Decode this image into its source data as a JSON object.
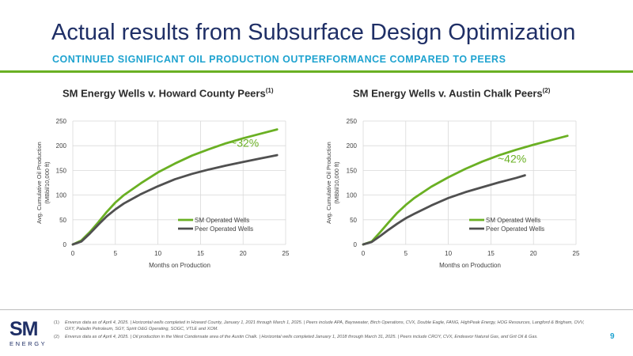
{
  "header": {
    "title": "Actual results from Subsurface Design Optimization",
    "subtitle": "CONTINUED SIGNIFICANT OIL PRODUCTION OUTPERFORMANCE COMPARED TO PEERS"
  },
  "colors": {
    "accent_green": "#6ab023",
    "peer_gray": "#505050",
    "title_navy": "#1f2f66",
    "subtitle_blue": "#1fa3d0"
  },
  "chart_data": [
    {
      "type": "line",
      "title": "SM Energy Wells v. Howard County Peers",
      "title_sup": "(1)",
      "xlabel": "Months on Production",
      "ylabel_line1": "Avg. Cumulative Oil Production",
      "ylabel_line2": "(MBbl/10,000 ft)",
      "xlim": [
        0,
        25
      ],
      "ylim": [
        0,
        250
      ],
      "xticks": [
        0,
        5,
        10,
        15,
        20,
        25
      ],
      "yticks": [
        0,
        50,
        100,
        150,
        200,
        250
      ],
      "grid": true,
      "legend": "bottom-right",
      "annotation": "~32%",
      "series": [
        {
          "name": "SM Operated Wells",
          "color": "#6ab023",
          "x": [
            0,
            1,
            2,
            3,
            4,
            5,
            6,
            8,
            10,
            12,
            14,
            16,
            18,
            20,
            22,
            24
          ],
          "values": [
            0,
            8,
            25,
            45,
            66,
            85,
            100,
            124,
            146,
            164,
            180,
            193,
            205,
            215,
            224,
            233
          ]
        },
        {
          "name": "Peer Operated Wells",
          "color": "#505050",
          "x": [
            0,
            1,
            2,
            3,
            4,
            5,
            6,
            8,
            10,
            12,
            14,
            16,
            18,
            20,
            22,
            24
          ],
          "values": [
            0,
            6,
            22,
            40,
            57,
            71,
            83,
            102,
            118,
            132,
            143,
            152,
            160,
            167,
            174,
            181
          ]
        }
      ]
    },
    {
      "type": "line",
      "title": "SM Energy Wells v. Austin Chalk Peers",
      "title_sup": "(2)",
      "xlabel": "Months on Production",
      "ylabel_line1": "Avg. Cumulative Oil Production",
      "ylabel_line2": "(MBbl/10,000 ft)",
      "xlim": [
        0,
        25
      ],
      "ylim": [
        0,
        250
      ],
      "xticks": [
        0,
        5,
        10,
        15,
        20,
        25
      ],
      "yticks": [
        0,
        50,
        100,
        150,
        200,
        250
      ],
      "grid": true,
      "legend": "bottom-right",
      "annotation": "~42%",
      "series": [
        {
          "name": "SM Operated Wells",
          "color": "#6ab023",
          "x": [
            0,
            1,
            2,
            3,
            4,
            5,
            6,
            8,
            10,
            12,
            14,
            16,
            18,
            20,
            22,
            24
          ],
          "values": [
            0,
            6,
            25,
            45,
            64,
            80,
            94,
            117,
            136,
            153,
            168,
            181,
            192,
            202,
            211,
            220
          ]
        },
        {
          "name": "Peer Operated Wells",
          "color": "#505050",
          "x": [
            0,
            1,
            2,
            3,
            4,
            5,
            6,
            8,
            10,
            12,
            14,
            16,
            18,
            19
          ],
          "values": [
            0,
            5,
            17,
            30,
            42,
            53,
            62,
            79,
            94,
            106,
            116,
            126,
            135,
            140
          ]
        }
      ]
    }
  ],
  "footer": {
    "logo_sm": "SM",
    "logo_energy": "ENERGY",
    "footnotes": [
      {
        "num": "(1)",
        "text": "Enverus data as of April 4, 2025. | Horizontal wells completed in Howard County, January 1, 2021 through March 1, 2025. | Peers include APA, Baysweater, Birch Operations, CVX, Double Eagle, FANG, HighPeak Energy, HOG Resources, Langford & Brigham, OVV, OXY, Paladin Petroleum, SGY, Spirit O&G Operating, SOGC, VTLE and XOM."
      },
      {
        "num": "(2)",
        "text": "Enverus data as of April 4, 2025. | Oil production in the West Condensate area of the Austin Chalk. | Horizontal wells completed January 1, 2018 through March 31, 2025. | Peers include CROY, CVX, Endeavor Natural Gas, and Grit Oil & Gas."
      }
    ],
    "page_number": "9"
  }
}
